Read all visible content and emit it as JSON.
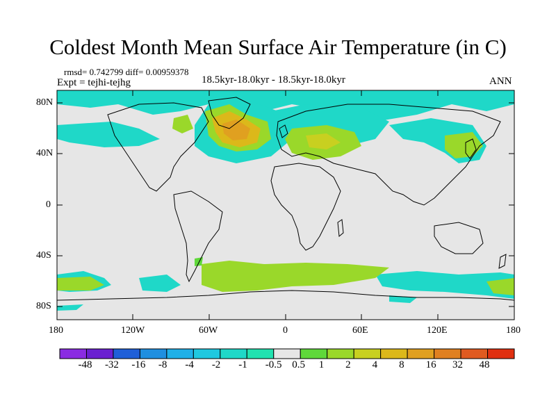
{
  "title": "Coldest Month Mean Surface Air Temperature (in C)",
  "stats": "rmsd= 0.742799 diff= 0.00959378",
  "experiment": "Expt = tejhi-tejhg",
  "subtitle": "18.5kyr-18.0kyr - 18.5kyr-18.0kyr",
  "season": "ANN",
  "lat_ticks": [
    "80N",
    "40N",
    "0",
    "40S",
    "80S"
  ],
  "lon_ticks": [
    "180",
    "120W",
    "60W",
    "0",
    "60E",
    "120E",
    "180"
  ],
  "colors": {
    "neutral": "#e6e6e6",
    "land_outline": "#000000"
  },
  "colorbar": {
    "colors": [
      "#8a2be2",
      "#6a1fd1",
      "#1f5fd8",
      "#1f8fe0",
      "#1fb0e8",
      "#1fc8e0",
      "#1fd8c8",
      "#22e2b0",
      "#e6e6e6",
      "#5fd83a",
      "#9ad82a",
      "#c8d020",
      "#dcb81a",
      "#e0a020",
      "#e08020",
      "#e05a20",
      "#e03010"
    ],
    "labels": [
      "-48",
      "-32",
      "-16",
      "-8",
      "-4",
      "-2",
      "-1",
      "-0.5",
      "0.5",
      "1",
      "2",
      "4",
      "8",
      "16",
      "32",
      "48"
    ]
  }
}
